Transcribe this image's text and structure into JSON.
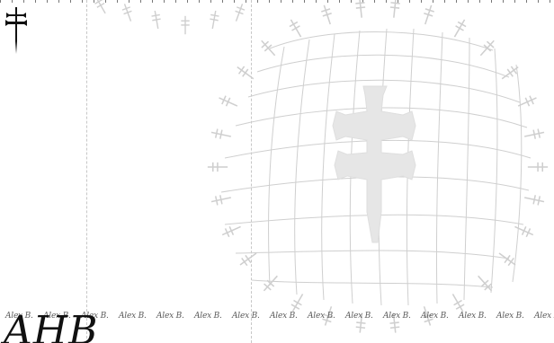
{
  "canvas": {
    "background": "#ffffff",
    "guide_color": "#c7c7c7",
    "grid_color": "#c9c9c9",
    "ornament_color": "#d4d4d4",
    "ink_color": "#111111"
  },
  "corner_logo": {
    "icon": "cross-of-lorraine-icon"
  },
  "signature_strip": {
    "items": [
      "Alex B.",
      "Alex B.",
      "Alex B.",
      "Alex B.",
      "Alex B.",
      "Alex B.",
      "Alex B.",
      "Alex B.",
      "Alex B.",
      "Alex B.",
      "Alex B.",
      "Alex B.",
      "Alex B.",
      "Alex B.",
      "Alex B."
    ]
  },
  "monogram": {
    "text": "AHB"
  },
  "watermark": {
    "icon": "cross-of-lorraine-icon",
    "style": "warped-grid-seal"
  }
}
